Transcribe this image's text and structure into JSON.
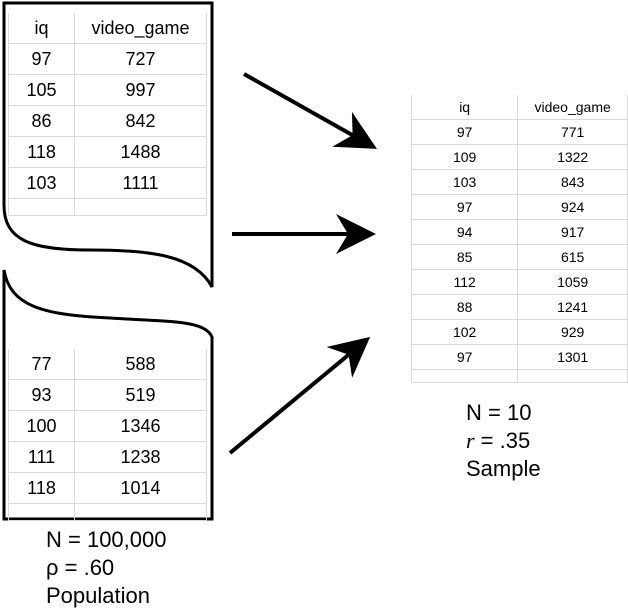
{
  "population": {
    "headers": [
      "iq",
      "video_game"
    ],
    "top_rows": [
      [
        "97",
        "727"
      ],
      [
        "105",
        "997"
      ],
      [
        "86",
        "842"
      ],
      [
        "118",
        "1488"
      ],
      [
        "103",
        "1111"
      ]
    ],
    "bottom_rows": [
      [
        "77",
        "588"
      ],
      [
        "93",
        "519"
      ],
      [
        "100",
        "1346"
      ],
      [
        "111",
        "1238"
      ],
      [
        "118",
        "1014"
      ]
    ],
    "caption": {
      "n": "N = 100,000",
      "stat": "ρ = .60",
      "label": "Population"
    }
  },
  "sample": {
    "headers": [
      "iq",
      "video_game"
    ],
    "rows": [
      [
        "97",
        "771"
      ],
      [
        "109",
        "1322"
      ],
      [
        "103",
        "843"
      ],
      [
        "97",
        "924"
      ],
      [
        "94",
        "917"
      ],
      [
        "85",
        "615"
      ],
      [
        "112",
        "1059"
      ],
      [
        "88",
        "1241"
      ],
      [
        "102",
        "929"
      ],
      [
        "97",
        "1301"
      ]
    ],
    "caption": {
      "n": "N = 10",
      "stat_symbol": "r",
      "stat_value": " = .35",
      "label": "Sample"
    }
  }
}
